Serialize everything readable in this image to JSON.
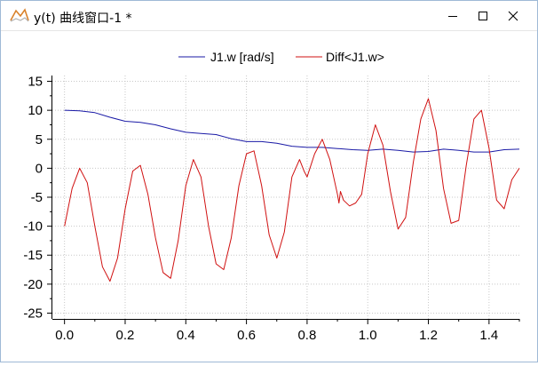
{
  "window": {
    "title": "y(t) 曲线窗口-1 *",
    "icons": {
      "app": "chart-icon",
      "minimize": "minimize-icon",
      "maximize": "maximize-icon",
      "close": "close-icon"
    }
  },
  "colors": {
    "series1": "#1a1aa6",
    "series2": "#d01010",
    "grid": "#c8c8c8",
    "axis": "#000000"
  },
  "chart_data": {
    "type": "line",
    "title": "",
    "xlabel": "",
    "ylabel": "",
    "xlim": [
      -0.04,
      1.5
    ],
    "ylim": [
      -26,
      16
    ],
    "xticks": [
      0.0,
      0.2,
      0.4,
      0.6,
      0.8,
      1.0,
      1.2,
      1.4
    ],
    "xtick_labels": [
      "0.0",
      "0.2",
      "0.4",
      "0.6",
      "0.8",
      "1.0",
      "1.2",
      "1.4"
    ],
    "yticks": [
      15,
      10,
      5,
      0,
      -5,
      -10,
      -15,
      -20,
      -25
    ],
    "ytick_labels": [
      "15",
      "10",
      "5",
      "0",
      "-5",
      "-10",
      "-15",
      "-20",
      "-25"
    ],
    "grid": true,
    "legend_position": "top",
    "series": [
      {
        "name": "J1.w [rad/s]",
        "color": "#1a1aa6",
        "x": [
          0.0,
          0.05,
          0.1,
          0.15,
          0.2,
          0.25,
          0.3,
          0.35,
          0.4,
          0.45,
          0.5,
          0.55,
          0.6,
          0.65,
          0.7,
          0.75,
          0.8,
          0.85,
          0.9,
          0.95,
          1.0,
          1.05,
          1.1,
          1.15,
          1.2,
          1.25,
          1.3,
          1.35,
          1.4,
          1.45,
          1.5
        ],
        "y": [
          10.0,
          9.9,
          9.6,
          8.8,
          8.1,
          7.9,
          7.5,
          6.8,
          6.2,
          6.0,
          5.8,
          5.1,
          4.6,
          4.6,
          4.3,
          3.8,
          3.6,
          3.6,
          3.4,
          3.2,
          3.1,
          3.3,
          3.1,
          2.8,
          2.9,
          3.3,
          3.1,
          2.8,
          2.8,
          3.2,
          3.3
        ]
      },
      {
        "name": "Diff<J1.w>",
        "color": "#d01010",
        "x": [
          0.0,
          0.025,
          0.05,
          0.075,
          0.1,
          0.125,
          0.15,
          0.175,
          0.2,
          0.225,
          0.25,
          0.275,
          0.3,
          0.325,
          0.35,
          0.375,
          0.4,
          0.425,
          0.45,
          0.475,
          0.5,
          0.525,
          0.55,
          0.575,
          0.6,
          0.625,
          0.65,
          0.675,
          0.7,
          0.725,
          0.75,
          0.775,
          0.79,
          0.8,
          0.825,
          0.85,
          0.875,
          0.9,
          0.905,
          0.91,
          0.92,
          0.94,
          0.96,
          0.98,
          1.0,
          1.025,
          1.05,
          1.075,
          1.1,
          1.125,
          1.15,
          1.175,
          1.2,
          1.225,
          1.25,
          1.275,
          1.3,
          1.325,
          1.35,
          1.375,
          1.4,
          1.425,
          1.45,
          1.475,
          1.5
        ],
        "y": [
          -10.0,
          -3.5,
          0.0,
          -2.5,
          -10.0,
          -17.0,
          -19.5,
          -15.5,
          -7.0,
          -0.5,
          0.5,
          -4.5,
          -12.0,
          -18.0,
          -19.0,
          -12.5,
          -3.0,
          1.5,
          -1.5,
          -10.0,
          -16.5,
          -17.5,
          -12.0,
          -3.0,
          2.5,
          3.0,
          -3.0,
          -11.5,
          -15.5,
          -11.0,
          -1.5,
          1.5,
          -0.5,
          -1.5,
          2.5,
          5.0,
          1.5,
          -4.5,
          -6.0,
          -4.0,
          -5.5,
          -6.5,
          -6.0,
          -4.5,
          2.5,
          7.5,
          4.0,
          -4.0,
          -10.5,
          -8.5,
          1.0,
          8.5,
          12.0,
          6.5,
          -3.5,
          -9.5,
          -9.0,
          0.5,
          8.5,
          10.0,
          3.5,
          -5.5,
          -7.0,
          -2.0,
          0.0
        ]
      }
    ]
  }
}
